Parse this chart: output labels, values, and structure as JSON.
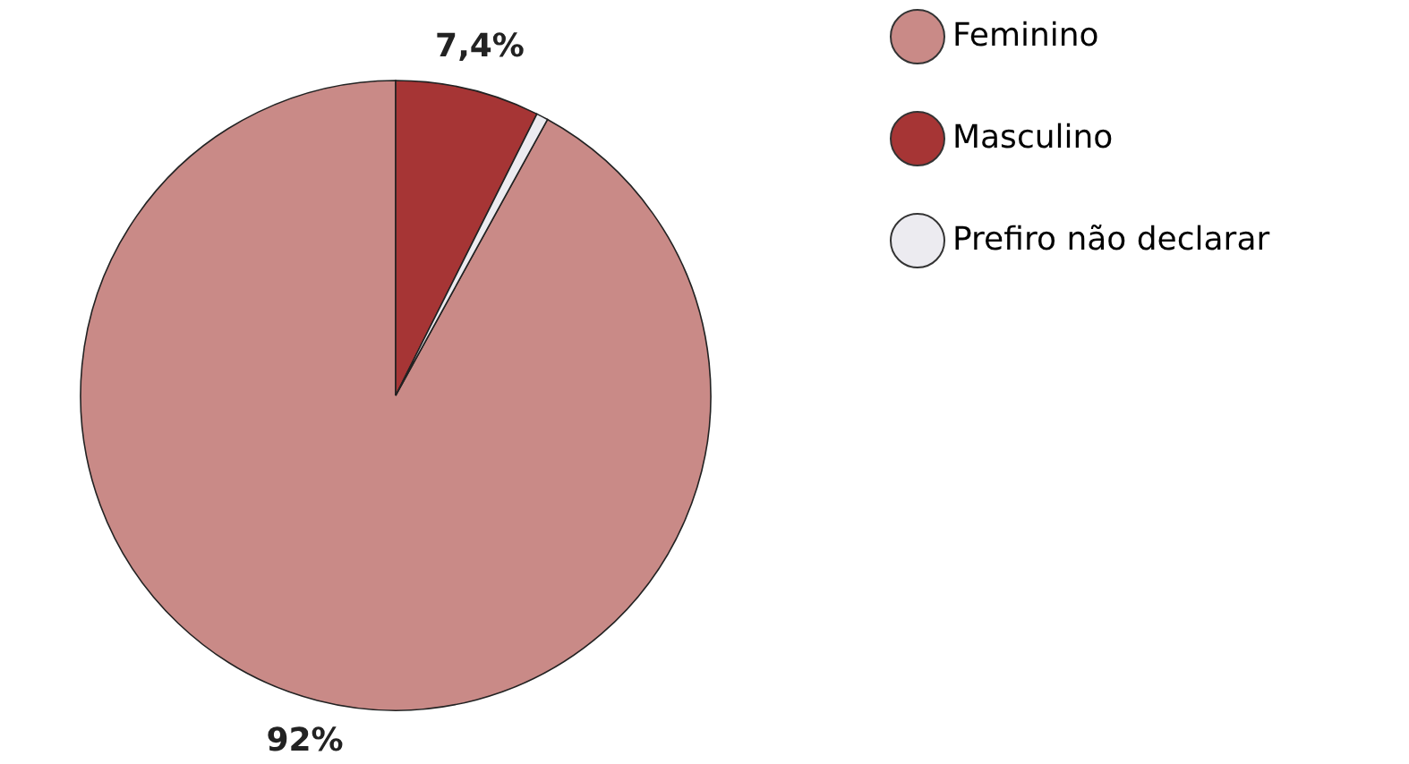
{
  "chart_data": {
    "type": "pie",
    "categories": [
      "Feminino",
      "Masculino",
      "Prefiro não declarar"
    ],
    "values": [
      92,
      7.4,
      0.6
    ],
    "colors": [
      "#c98a87",
      "#a63535",
      "#ecebf0"
    ],
    "value_labels": [
      "92%",
      "7,4%",
      null
    ],
    "legend": "right"
  }
}
